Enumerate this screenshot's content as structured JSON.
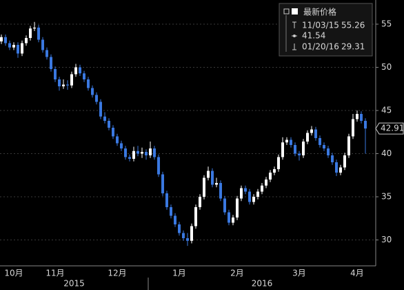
{
  "chart_data": {
    "type": "candlestick",
    "categories": [
      null,
      null,
      null,
      "10月",
      null,
      null,
      null,
      null,
      null,
      null,
      null,
      null,
      null,
      "11月",
      null,
      null,
      null,
      null,
      null,
      null,
      null,
      null,
      null,
      null,
      null,
      null,
      null,
      null,
      "12月",
      null,
      null,
      null,
      null,
      null,
      null,
      null,
      null,
      null,
      null,
      null,
      null,
      null,
      null,
      "1月",
      null,
      null,
      null,
      null,
      null,
      null,
      null,
      null,
      null,
      null,
      null,
      null,
      null,
      "2月",
      null,
      null,
      null,
      null,
      null,
      null,
      null,
      null,
      null,
      null,
      null,
      null,
      null,
      null,
      "3月",
      null,
      null,
      null,
      null,
      null,
      null,
      null,
      null,
      null,
      null,
      null,
      null,
      null,
      "4月",
      null,
      null
    ],
    "x_group_labels": [
      "2015",
      "2016"
    ],
    "ohlc": [
      [
        53.0,
        53.8,
        52.7,
        53.5
      ],
      [
        53.5,
        53.8,
        52.5,
        52.8
      ],
      [
        52.8,
        53.1,
        52.0,
        52.3
      ],
      [
        52.3,
        52.9,
        52.0,
        52.6
      ],
      [
        52.6,
        52.9,
        51.1,
        51.6
      ],
      [
        51.6,
        53.1,
        51.3,
        52.8
      ],
      [
        52.8,
        53.7,
        52.5,
        53.4
      ],
      [
        53.4,
        54.8,
        53.1,
        54.5
      ],
      [
        54.5,
        55.26,
        54.2,
        54.6
      ],
      [
        54.6,
        54.9,
        52.9,
        53.2
      ],
      [
        53.2,
        53.5,
        51.7,
        52.0
      ],
      [
        52.0,
        52.3,
        50.9,
        51.2
      ],
      [
        51.2,
        51.5,
        49.5,
        49.8
      ],
      [
        49.8,
        50.1,
        48.3,
        48.6
      ],
      [
        48.6,
        48.9,
        47.3,
        47.8
      ],
      [
        47.8,
        48.6,
        47.5,
        48.0
      ],
      [
        48.0,
        48.5,
        47.4,
        47.9
      ],
      [
        47.9,
        49.5,
        47.6,
        49.2
      ],
      [
        49.2,
        50.4,
        48.9,
        50.0
      ],
      [
        50.0,
        50.3,
        49.0,
        49.3
      ],
      [
        49.3,
        49.6,
        48.3,
        48.6
      ],
      [
        48.6,
        48.9,
        47.3,
        47.6
      ],
      [
        47.6,
        47.9,
        46.5,
        46.8
      ],
      [
        46.8,
        47.1,
        45.7,
        46.0
      ],
      [
        46.0,
        46.3,
        44.0,
        44.3
      ],
      [
        44.3,
        44.8,
        43.5,
        43.8
      ],
      [
        43.8,
        44.1,
        42.7,
        43.0
      ],
      [
        43.0,
        43.3,
        41.7,
        42.0
      ],
      [
        42.0,
        42.3,
        40.9,
        41.2
      ],
      [
        41.2,
        41.5,
        40.3,
        40.6
      ],
      [
        40.6,
        40.9,
        39.3,
        39.6
      ],
      [
        39.6,
        39.9,
        39.1,
        39.4
      ],
      [
        39.4,
        40.8,
        39.1,
        40.3
      ],
      [
        40.3,
        40.9,
        39.7,
        40.0
      ],
      [
        40.0,
        40.7,
        39.5,
        40.2
      ],
      [
        40.2,
        40.5,
        39.3,
        39.8
      ],
      [
        39.8,
        41.4,
        39.5,
        40.6
      ],
      [
        40.6,
        40.9,
        39.3,
        39.6
      ],
      [
        39.6,
        39.9,
        37.3,
        37.6
      ],
      [
        37.6,
        37.9,
        35.1,
        35.4
      ],
      [
        35.4,
        35.7,
        33.5,
        33.8
      ],
      [
        33.8,
        34.1,
        32.5,
        32.8
      ],
      [
        32.8,
        33.1,
        31.5,
        31.8
      ],
      [
        31.8,
        32.1,
        30.5,
        30.8
      ],
      [
        30.8,
        31.1,
        29.9,
        30.2
      ],
      [
        30.2,
        30.8,
        29.31,
        29.9
      ],
      [
        29.9,
        31.9,
        29.6,
        31.6
      ],
      [
        31.6,
        34.1,
        31.3,
        33.8
      ],
      [
        33.8,
        35.3,
        33.5,
        35.0
      ],
      [
        35.0,
        37.5,
        34.7,
        37.2
      ],
      [
        37.2,
        38.5,
        36.9,
        38.0
      ],
      [
        38.0,
        38.3,
        36.1,
        36.4
      ],
      [
        36.4,
        37.2,
        36.1,
        36.6
      ],
      [
        36.6,
        36.9,
        34.5,
        34.8
      ],
      [
        34.8,
        35.1,
        32.9,
        33.2
      ],
      [
        33.2,
        33.5,
        31.7,
        32.0
      ],
      [
        32.0,
        32.9,
        31.7,
        32.6
      ],
      [
        32.6,
        35.1,
        32.3,
        34.8
      ],
      [
        34.8,
        36.3,
        34.5,
        36.0
      ],
      [
        36.0,
        36.3,
        35.3,
        35.6
      ],
      [
        35.6,
        35.9,
        34.1,
        34.4
      ],
      [
        34.4,
        35.3,
        34.1,
        35.0
      ],
      [
        35.0,
        35.9,
        34.7,
        35.6
      ],
      [
        35.6,
        36.6,
        35.3,
        36.3
      ],
      [
        36.3,
        37.3,
        36.0,
        37.0
      ],
      [
        37.0,
        38.1,
        36.7,
        37.8
      ],
      [
        37.8,
        38.5,
        37.5,
        38.2
      ],
      [
        38.2,
        39.9,
        37.9,
        39.6
      ],
      [
        39.6,
        41.9,
        39.3,
        41.3
      ],
      [
        41.3,
        41.9,
        41.0,
        41.6
      ],
      [
        41.6,
        41.9,
        40.7,
        41.0
      ],
      [
        41.0,
        41.3,
        39.7,
        40.0
      ],
      [
        40.0,
        40.3,
        39.2,
        39.8
      ],
      [
        39.8,
        41.7,
        39.5,
        41.4
      ],
      [
        41.4,
        42.7,
        41.1,
        42.4
      ],
      [
        42.4,
        43.2,
        42.1,
        42.8
      ],
      [
        42.8,
        43.1,
        41.5,
        41.8
      ],
      [
        41.8,
        42.1,
        40.7,
        41.0
      ],
      [
        41.0,
        41.3,
        40.3,
        40.6
      ],
      [
        40.6,
        40.9,
        39.5,
        39.8
      ],
      [
        39.8,
        40.1,
        38.7,
        39.0
      ],
      [
        39.0,
        39.3,
        37.4,
        37.8
      ],
      [
        37.8,
        38.7,
        37.5,
        38.4
      ],
      [
        38.4,
        40.1,
        38.1,
        39.8
      ],
      [
        39.8,
        42.3,
        39.5,
        42.0
      ],
      [
        42.0,
        44.6,
        41.7,
        44.0
      ],
      [
        44.0,
        45.0,
        43.7,
        44.6
      ],
      [
        44.6,
        44.9,
        43.5,
        43.8
      ],
      [
        43.8,
        44.1,
        40.0,
        42.91
      ]
    ],
    "up_color": "#ffffff",
    "down_color": "#3a78e0",
    "ylim": [
      27,
      57.8
    ],
    "yticks": [
      30,
      35,
      40,
      45,
      50,
      55
    ],
    "grid": true,
    "last_value": 42.91,
    "legend": {
      "title": "最新价格",
      "high": {
        "date": "11/03/15",
        "value": 55.26
      },
      "average": 41.54,
      "low": {
        "date": "01/20/16",
        "value": 29.31
      }
    }
  }
}
